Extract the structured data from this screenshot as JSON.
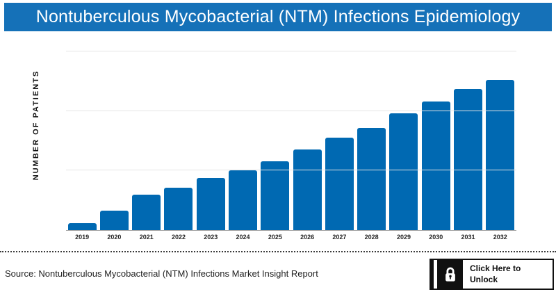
{
  "header": {
    "title": "Nontuberculous Mycobacterial (NTM) Infections Epidemiology",
    "bg_color": "#1571b8",
    "text_color": "#ffffff"
  },
  "chart_data": {
    "type": "bar",
    "title": "Nontuberculous Mycobacterial (NTM) Infections Epidemiology",
    "categories": [
      "2019",
      "2020",
      "2021",
      "2022",
      "2023",
      "2024",
      "2025",
      "2026",
      "2027",
      "2028",
      "2029",
      "2030",
      "2031",
      "2032"
    ],
    "values": [
      0.12,
      0.33,
      0.6,
      0.71,
      0.88,
      1.0,
      1.16,
      1.35,
      1.55,
      1.72,
      1.96,
      2.16,
      2.37,
      2.52
    ],
    "values_note": "y-axis has no numeric tick labels; values estimated in gridline units (1 unit = spacing between horizontal gridlines; 2024 = 1.0 unit)",
    "xlabel": "",
    "ylabel": "NUMBER OF PATIENTS",
    "ylim": [
      0,
      3.05
    ],
    "gridline_units": [
      1,
      2,
      3
    ],
    "grid": "horizontal only",
    "legend": "none",
    "bar_color": "#0069b2"
  },
  "footer": {
    "source_text": "Source: Nontuberculous Mycobacterial (NTM) Infections Market Insight Report",
    "unlock_button": {
      "label_line1": "Click Here to",
      "label_line2": "Unlock",
      "icon": "lock-icon"
    }
  }
}
